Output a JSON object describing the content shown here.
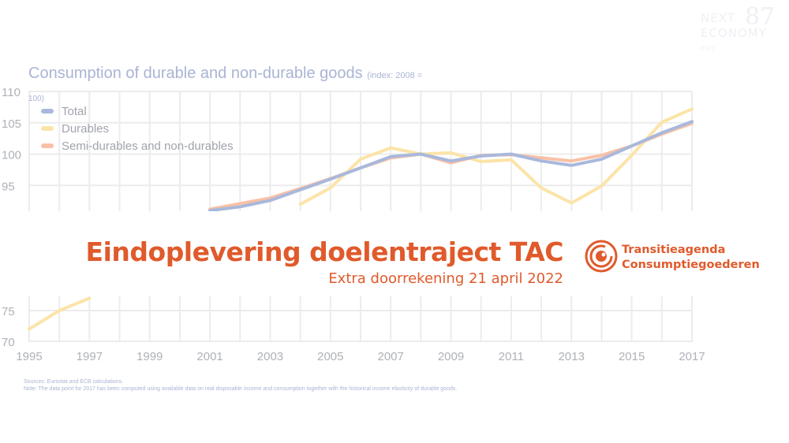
{
  "logo": {
    "line1": "NEXT",
    "line2": "ECONOMY",
    "line3": "ecc",
    "mark": "87"
  },
  "chart_header": {
    "title": "Consumption of durable and non-durable goods",
    "subtitle_part1": "(index: 2008 =",
    "subtitle_part2": "100)"
  },
  "banner": {
    "title": "Eindoplevering doelentraject TAC",
    "subtitle": "Extra doorrekening 21 april 2022",
    "brand_line1": "Transitieagenda",
    "brand_line2": "Consumptiegoederen"
  },
  "notes": {
    "sources": "Sources: Eurostat and ECB calculations.",
    "note": "Note: The data point for 2017 has been computed using available data on real disposable income and consumption together with the historical income elasticity of durable goods."
  },
  "colors": {
    "accent": "#e05a2b",
    "total": "#a9b8dc",
    "durables": "#fce4a8",
    "semi": "#f9c0a6"
  },
  "chart_data": {
    "type": "line",
    "title": "Consumption of durable and non-durable goods",
    "subtitle": "(index: 2008 = 100)",
    "x": [
      1995,
      1996,
      1997,
      1998,
      1999,
      2000,
      2001,
      2002,
      2003,
      2004,
      2005,
      2006,
      2007,
      2008,
      2009,
      2010,
      2011,
      2012,
      2013,
      2014,
      2015,
      2016,
      2017
    ],
    "xticks": [
      "1995",
      "1997",
      "1999",
      "2001",
      "2003",
      "2005",
      "2007",
      "2009",
      "2011",
      "2013",
      "2015",
      "2017"
    ],
    "yticks": [
      "70",
      "75",
      "95",
      "100",
      "105",
      "110"
    ],
    "ylim": [
      70,
      110
    ],
    "grid": true,
    "legend_position": "top-left",
    "series": [
      {
        "name": "Total",
        "color": "#a9b8dc",
        "values": [
          null,
          null,
          null,
          null,
          null,
          null,
          91,
          91.6,
          92.6,
          94.3,
          96,
          97.8,
          99.6,
          100,
          98.9,
          99.7,
          100,
          98.9,
          98.2,
          99.2,
          101.3,
          103.4,
          105.2
        ]
      },
      {
        "name": "Durables",
        "color": "#fce4a8",
        "values": [
          72,
          75,
          77,
          null,
          null,
          null,
          null,
          null,
          null,
          92,
          94.6,
          99.2,
          101,
          100,
          100.2,
          98.8,
          99.1,
          94.6,
          92.2,
          94.9,
          99.8,
          105.1,
          107.2
        ]
      },
      {
        "name": "Semi-durables and non-durables",
        "color": "#f9c0a6",
        "values": [
          null,
          null,
          null,
          null,
          null,
          null,
          91.2,
          92.1,
          93,
          94.5,
          96.1,
          97.8,
          99.4,
          100,
          98.6,
          99.8,
          99.9,
          99.4,
          98.9,
          99.8,
          101.3,
          103.2,
          104.9
        ]
      }
    ]
  }
}
